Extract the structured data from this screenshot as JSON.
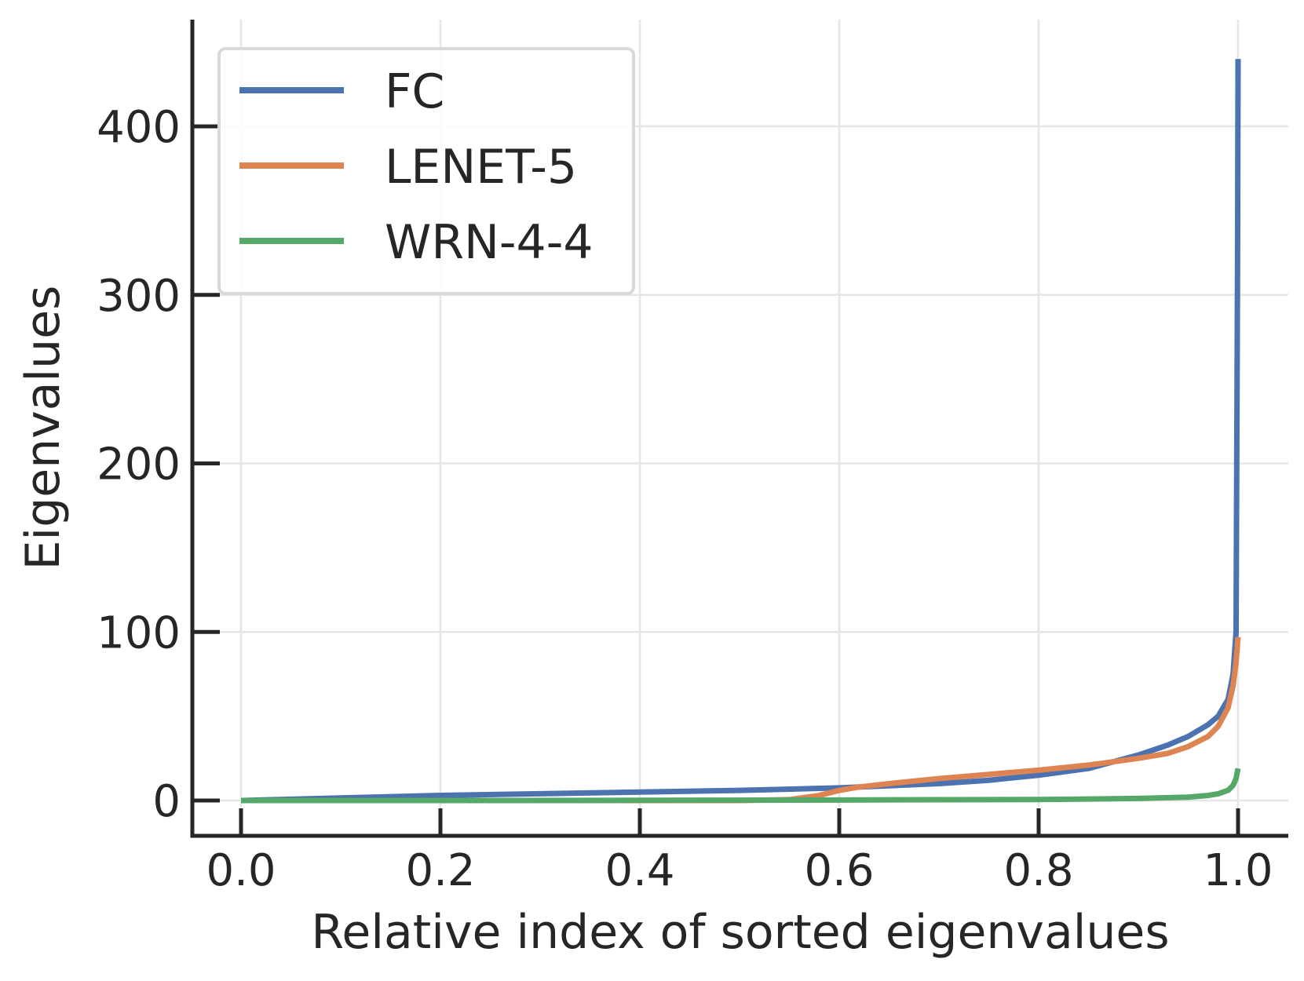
{
  "chart_data": {
    "type": "line",
    "title": "",
    "xlabel": "Relative index of sorted eigenvalues",
    "ylabel": "Eigenvalues",
    "xlim": [
      -0.05,
      1.05
    ],
    "ylim": [
      -20,
      460
    ],
    "xticks": [
      0.0,
      0.2,
      0.4,
      0.6,
      0.8,
      1.0
    ],
    "xtick_labels": [
      "0.0",
      "0.2",
      "0.4",
      "0.6",
      "0.8",
      "1.0"
    ],
    "yticks": [
      0,
      100,
      200,
      300,
      400
    ],
    "ytick_labels": [
      "0",
      "100",
      "200",
      "300",
      "400"
    ],
    "grid": true,
    "legend_position": "top-left",
    "series": [
      {
        "name": "FC",
        "color": "#4c72b0",
        "x": [
          0,
          0.1,
          0.2,
          0.3,
          0.4,
          0.5,
          0.6,
          0.7,
          0.75,
          0.8,
          0.85,
          0.9,
          0.93,
          0.95,
          0.97,
          0.98,
          0.99,
          0.995,
          0.998,
          0.9995,
          1.0
        ],
        "y": [
          0,
          1.5,
          3,
          4,
          5,
          6,
          7.5,
          10,
          12,
          15,
          19,
          27,
          33,
          38,
          45,
          50,
          60,
          75,
          100,
          320,
          440
        ]
      },
      {
        "name": "LENET-5",
        "color": "#dd8452",
        "x": [
          0,
          0.2,
          0.4,
          0.5,
          0.55,
          0.58,
          0.6,
          0.62,
          0.65,
          0.7,
          0.75,
          0.8,
          0.85,
          0.9,
          0.93,
          0.95,
          0.97,
          0.98,
          0.99,
          0.995,
          0.998,
          1.0
        ],
        "y": [
          0,
          0,
          0,
          0,
          0.5,
          3,
          6,
          8,
          10,
          13,
          15.5,
          18,
          21,
          25,
          28,
          32,
          38,
          44,
          55,
          68,
          82,
          97
        ]
      },
      {
        "name": "WRN-4-4",
        "color": "#55a868",
        "x": [
          0,
          0.2,
          0.4,
          0.6,
          0.8,
          0.9,
          0.95,
          0.97,
          0.98,
          0.99,
          0.995,
          0.998,
          1.0
        ],
        "y": [
          0,
          0,
          0.1,
          0.3,
          0.6,
          1.2,
          2,
          3,
          4,
          6,
          9,
          13,
          19
        ]
      }
    ]
  }
}
